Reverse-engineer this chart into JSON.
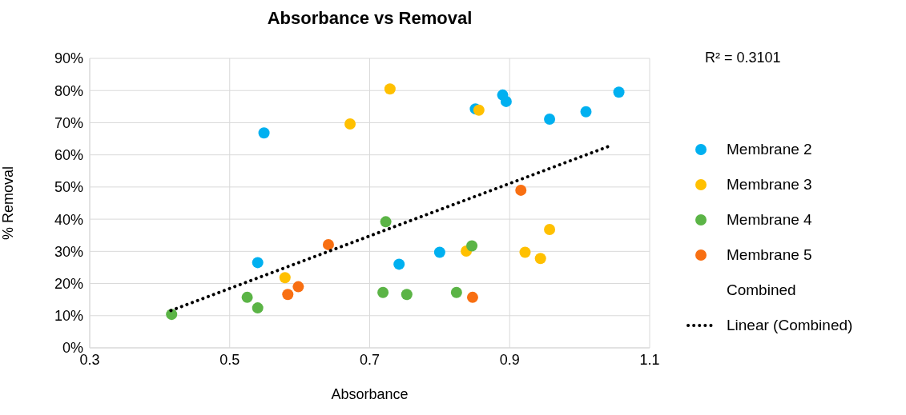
{
  "chart_data": {
    "type": "scatter",
    "title": "Absorbance vs Removal",
    "xlabel": "Absorbance",
    "ylabel": "% Removal",
    "xlim": [
      0.3,
      1.1
    ],
    "xticks": [
      0.3,
      0.5,
      0.7,
      0.9,
      1.1
    ],
    "ylim": [
      0,
      90
    ],
    "yticks": [
      {
        "value": 0,
        "label": "0%"
      },
      {
        "value": 10,
        "label": "10%"
      },
      {
        "value": 20,
        "label": "20%"
      },
      {
        "value": 30,
        "label": "30%"
      },
      {
        "value": 40,
        "label": "40%"
      },
      {
        "value": 50,
        "label": "50%"
      },
      {
        "value": 60,
        "label": "60%"
      },
      {
        "value": 70,
        "label": "70%"
      },
      {
        "value": 80,
        "label": "80%"
      },
      {
        "value": 90,
        "label": "90%"
      }
    ],
    "grid": true,
    "legend": "right",
    "marker": "circle",
    "annotations": [
      "R² = 0.3101"
    ],
    "series": [
      {
        "name": "Membrane 2",
        "color": "#00b0f0",
        "x": [
          0.549,
          0.54,
          0.851,
          0.89,
          0.895,
          0.957,
          1.009,
          1.056,
          0.8,
          0.742
        ],
        "values": [
          66.8,
          26.5,
          74.3,
          78.6,
          76.6,
          71.1,
          73.4,
          79.5,
          29.7,
          26.0
        ]
      },
      {
        "name": "Membrane 3",
        "color": "#ffc000",
        "x": [
          0.672,
          0.579,
          0.729,
          0.856,
          0.957,
          0.838,
          0.922,
          0.944
        ],
        "values": [
          69.6,
          21.8,
          80.5,
          73.9,
          36.8,
          30.1,
          29.7,
          27.8
        ]
      },
      {
        "name": "Membrane 4",
        "color": "#5bb446",
        "x": [
          0.525,
          0.54,
          0.417,
          0.723,
          0.846,
          0.719,
          0.753,
          0.824
        ],
        "values": [
          15.7,
          12.4,
          10.4,
          39.2,
          31.7,
          17.2,
          16.6,
          17.2
        ]
      },
      {
        "name": "Membrane 5",
        "color": "#f86f12",
        "x": [
          0.641,
          0.598,
          0.583,
          0.916,
          0.847
        ],
        "values": [
          32.1,
          19.0,
          16.6,
          49.0,
          15.7
        ]
      },
      {
        "name": "Combined",
        "marker": "none"
      },
      {
        "name": "Linear (Combined)",
        "type": "line",
        "color": "#000000",
        "line_style": "dotted",
        "marker": "none",
        "x": [
          0.416,
          1.047
        ],
        "values": [
          11.6,
          63.1
        ]
      }
    ]
  }
}
